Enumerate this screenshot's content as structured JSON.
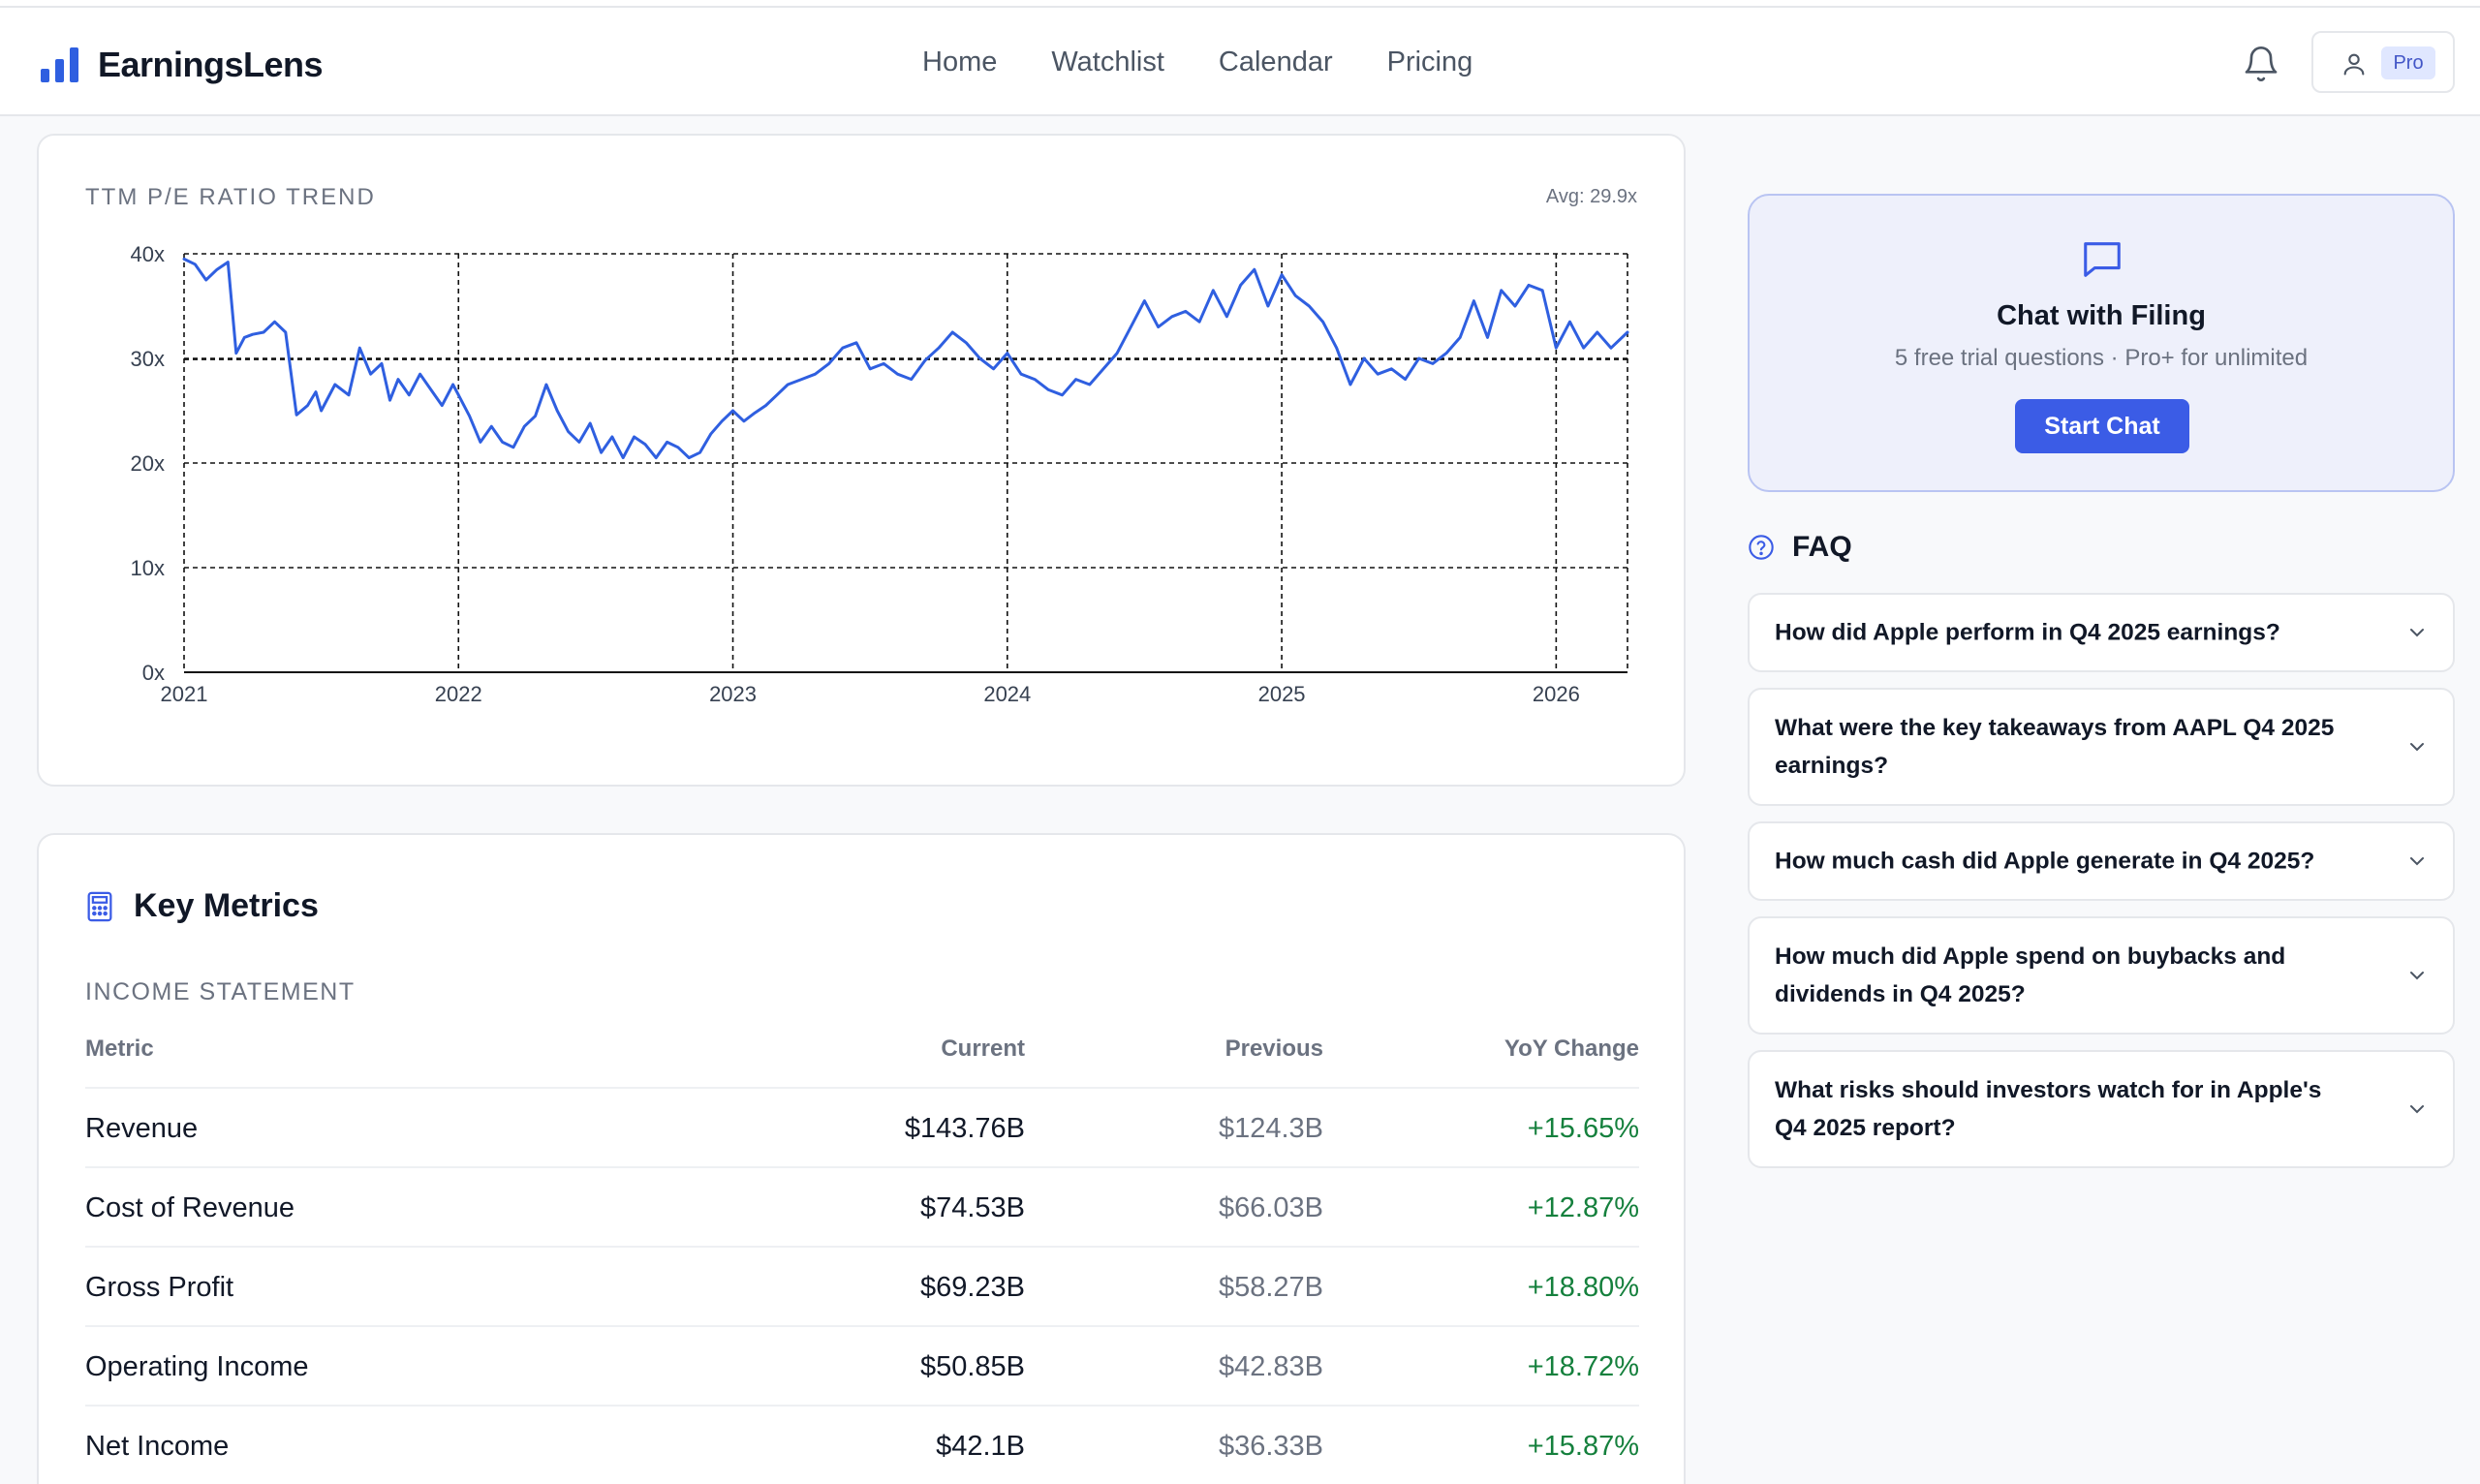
{
  "header": {
    "brand": "EarningsLens",
    "nav": [
      "Home",
      "Watchlist",
      "Calendar",
      "Pricing"
    ],
    "icons": {
      "notifications": "bell-icon",
      "account": "user-icon"
    },
    "plan_badge": "Pro"
  },
  "pe_chart": {
    "title": "TTM P/E RATIO TREND",
    "average_label": "Avg: 29.9x"
  },
  "chart_data": {
    "type": "line",
    "title": "TTM P/E RATIO TREND",
    "xlabel": "",
    "ylabel": "",
    "y_ticks": [
      "0x",
      "10x",
      "20x",
      "30x",
      "40x"
    ],
    "x_ticks": [
      "2021",
      "2022",
      "2023",
      "2024",
      "2025",
      "2026"
    ],
    "xlim": [
      2021.0,
      2026.26
    ],
    "ylim": [
      0,
      40
    ],
    "grid": true,
    "reference_line": {
      "label": "Avg: 29.9x",
      "value": 29.9
    },
    "series": [
      {
        "color": "#2f5fe0",
        "x": [
          2021.0,
          2021.04,
          2021.08,
          2021.12,
          2021.16,
          2021.19,
          2021.22,
          2021.25,
          2021.29,
          2021.33,
          2021.37,
          2021.41,
          2021.45,
          2021.48,
          2021.5,
          2021.55,
          2021.6,
          2021.64,
          2021.68,
          2021.72,
          2021.75,
          2021.78,
          2021.82,
          2021.86,
          2021.9,
          2021.94,
          2021.98,
          2022.0,
          2022.04,
          2022.08,
          2022.12,
          2022.16,
          2022.2,
          2022.24,
          2022.28,
          2022.32,
          2022.36,
          2022.4,
          2022.44,
          2022.48,
          2022.52,
          2022.56,
          2022.6,
          2022.64,
          2022.68,
          2022.72,
          2022.76,
          2022.8,
          2022.84,
          2022.88,
          2022.92,
          2022.96,
          2023.0,
          2023.04,
          2023.08,
          2023.12,
          2023.16,
          2023.2,
          2023.25,
          2023.3,
          2023.35,
          2023.4,
          2023.45,
          2023.5,
          2023.55,
          2023.6,
          2023.65,
          2023.7,
          2023.75,
          2023.8,
          2023.85,
          2023.9,
          2023.95,
          2024.0,
          2024.05,
          2024.1,
          2024.15,
          2024.2,
          2024.25,
          2024.3,
          2024.35,
          2024.4,
          2024.45,
          2024.5,
          2024.55,
          2024.6,
          2024.65,
          2024.7,
          2024.75,
          2024.8,
          2024.85,
          2024.9,
          2024.95,
          2025.0,
          2025.05,
          2025.1,
          2025.15,
          2025.2,
          2025.25,
          2025.3,
          2025.35,
          2025.4,
          2025.45,
          2025.5,
          2025.55,
          2025.6,
          2025.65,
          2025.7,
          2025.75,
          2025.8,
          2025.85,
          2025.9,
          2025.95,
          2026.0,
          2026.05,
          2026.1,
          2026.15,
          2026.2,
          2026.26
        ],
        "y": [
          39.5,
          39.0,
          37.5,
          38.5,
          39.2,
          30.5,
          32.0,
          32.3,
          32.5,
          33.5,
          32.5,
          24.6,
          25.5,
          26.8,
          25.0,
          27.5,
          26.5,
          31.0,
          28.5,
          29.5,
          26.0,
          28.0,
          26.5,
          28.5,
          27.0,
          25.5,
          27.5,
          26.5,
          24.5,
          22.0,
          23.5,
          22.0,
          21.5,
          23.5,
          24.5,
          27.5,
          25.0,
          23.0,
          22.0,
          23.8,
          21.0,
          22.5,
          20.5,
          22.5,
          21.8,
          20.5,
          22.0,
          21.5,
          20.5,
          21.0,
          22.8,
          24.0,
          25.0,
          24.0,
          24.8,
          25.5,
          26.5,
          27.5,
          28.0,
          28.5,
          29.5,
          31.0,
          31.5,
          29.0,
          29.5,
          28.5,
          28.0,
          29.8,
          31.0,
          32.5,
          31.5,
          30.0,
          29.0,
          30.5,
          28.5,
          28.0,
          27.0,
          26.5,
          28.0,
          27.5,
          29.0,
          30.5,
          33.0,
          35.5,
          33.0,
          34.0,
          34.5,
          33.5,
          36.5,
          34.0,
          37.0,
          38.5,
          35.0,
          38.0,
          36.0,
          35.0,
          33.5,
          31.0,
          27.5,
          30.0,
          28.5,
          29.0,
          28.0,
          30.0,
          29.5,
          30.5,
          32.0,
          35.5,
          32.0,
          36.5,
          35.0,
          37.0,
          36.5,
          31.0,
          33.5,
          31.0,
          32.5,
          31.0,
          32.5
        ]
      }
    ]
  },
  "metrics": {
    "title": "Key Metrics",
    "section": "INCOME STATEMENT",
    "columns": [
      "Metric",
      "Current",
      "Previous",
      "YoY Change"
    ],
    "rows": [
      {
        "metric": "Revenue",
        "current": "$143.76B",
        "previous": "$124.3B",
        "yoy": "+15.65%"
      },
      {
        "metric": "Cost of Revenue",
        "current": "$74.53B",
        "previous": "$66.03B",
        "yoy": "+12.87%"
      },
      {
        "metric": "Gross Profit",
        "current": "$69.23B",
        "previous": "$58.27B",
        "yoy": "+18.80%"
      },
      {
        "metric": "Operating Income",
        "current": "$50.85B",
        "previous": "$42.83B",
        "yoy": "+18.72%"
      },
      {
        "metric": "Net Income",
        "current": "$42.1B",
        "previous": "$36.33B",
        "yoy": "+15.87%"
      }
    ]
  },
  "chat": {
    "title": "Chat with Filing",
    "subtitle": "5 free trial questions · Pro+ for unlimited",
    "button": "Start Chat"
  },
  "faq": {
    "title": "FAQ",
    "items": [
      "How did Apple perform in Q4 2025 earnings?",
      "What were the key takeaways from AAPL Q4 2025 earnings?",
      "How much cash did Apple generate in Q4 2025?",
      "How much did Apple spend on buybacks and dividends in Q4 2025?",
      "What risks should investors watch for in Apple's Q4 2025 report?"
    ]
  },
  "colors": {
    "accent": "#3b5ce6",
    "brand": "#2f5fe0",
    "positive": "#15803d",
    "chat_bg": "#eef0fb"
  }
}
